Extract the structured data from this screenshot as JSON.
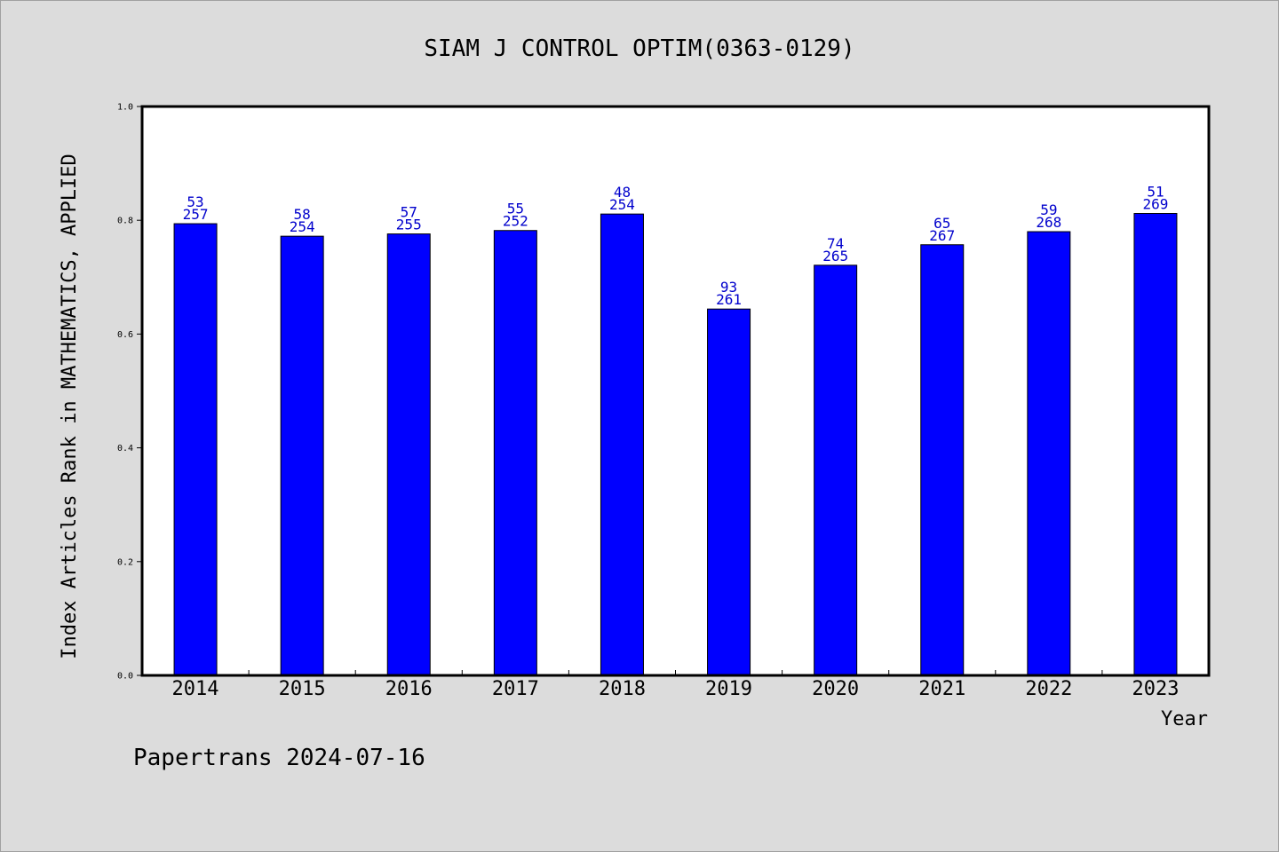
{
  "chart_data": {
    "type": "bar",
    "title": "SIAM J CONTROL OPTIM(0363-0129)",
    "xlabel": "Year",
    "ylabel": "Index Articles Rank in MATHEMATICS, APPLIED",
    "categories": [
      "2014",
      "2015",
      "2016",
      "2017",
      "2018",
      "2019",
      "2020",
      "2021",
      "2022",
      "2023"
    ],
    "values": [
      0.794,
      0.772,
      0.776,
      0.782,
      0.811,
      0.644,
      0.721,
      0.757,
      0.78,
      0.812
    ],
    "bar_labels_top": [
      "53",
      "58",
      "57",
      "55",
      "48",
      "93",
      "74",
      "65",
      "59",
      "51"
    ],
    "bar_labels_bottom": [
      "257",
      "254",
      "255",
      "252",
      "254",
      "261",
      "265",
      "267",
      "268",
      "269"
    ],
    "ylim": [
      0,
      1.0
    ],
    "yticks": [
      "0.0",
      "0.2",
      "0.4",
      "0.6",
      "0.8",
      "1.0"
    ],
    "ytick_values": [
      0,
      0.2,
      0.4,
      0.6,
      0.8,
      1.0
    ],
    "bar_color": "#0000ff",
    "label_color": "#0000cc",
    "grid": false,
    "legend": "none"
  },
  "footer": {
    "text": "Papertrans 2024-07-16"
  }
}
